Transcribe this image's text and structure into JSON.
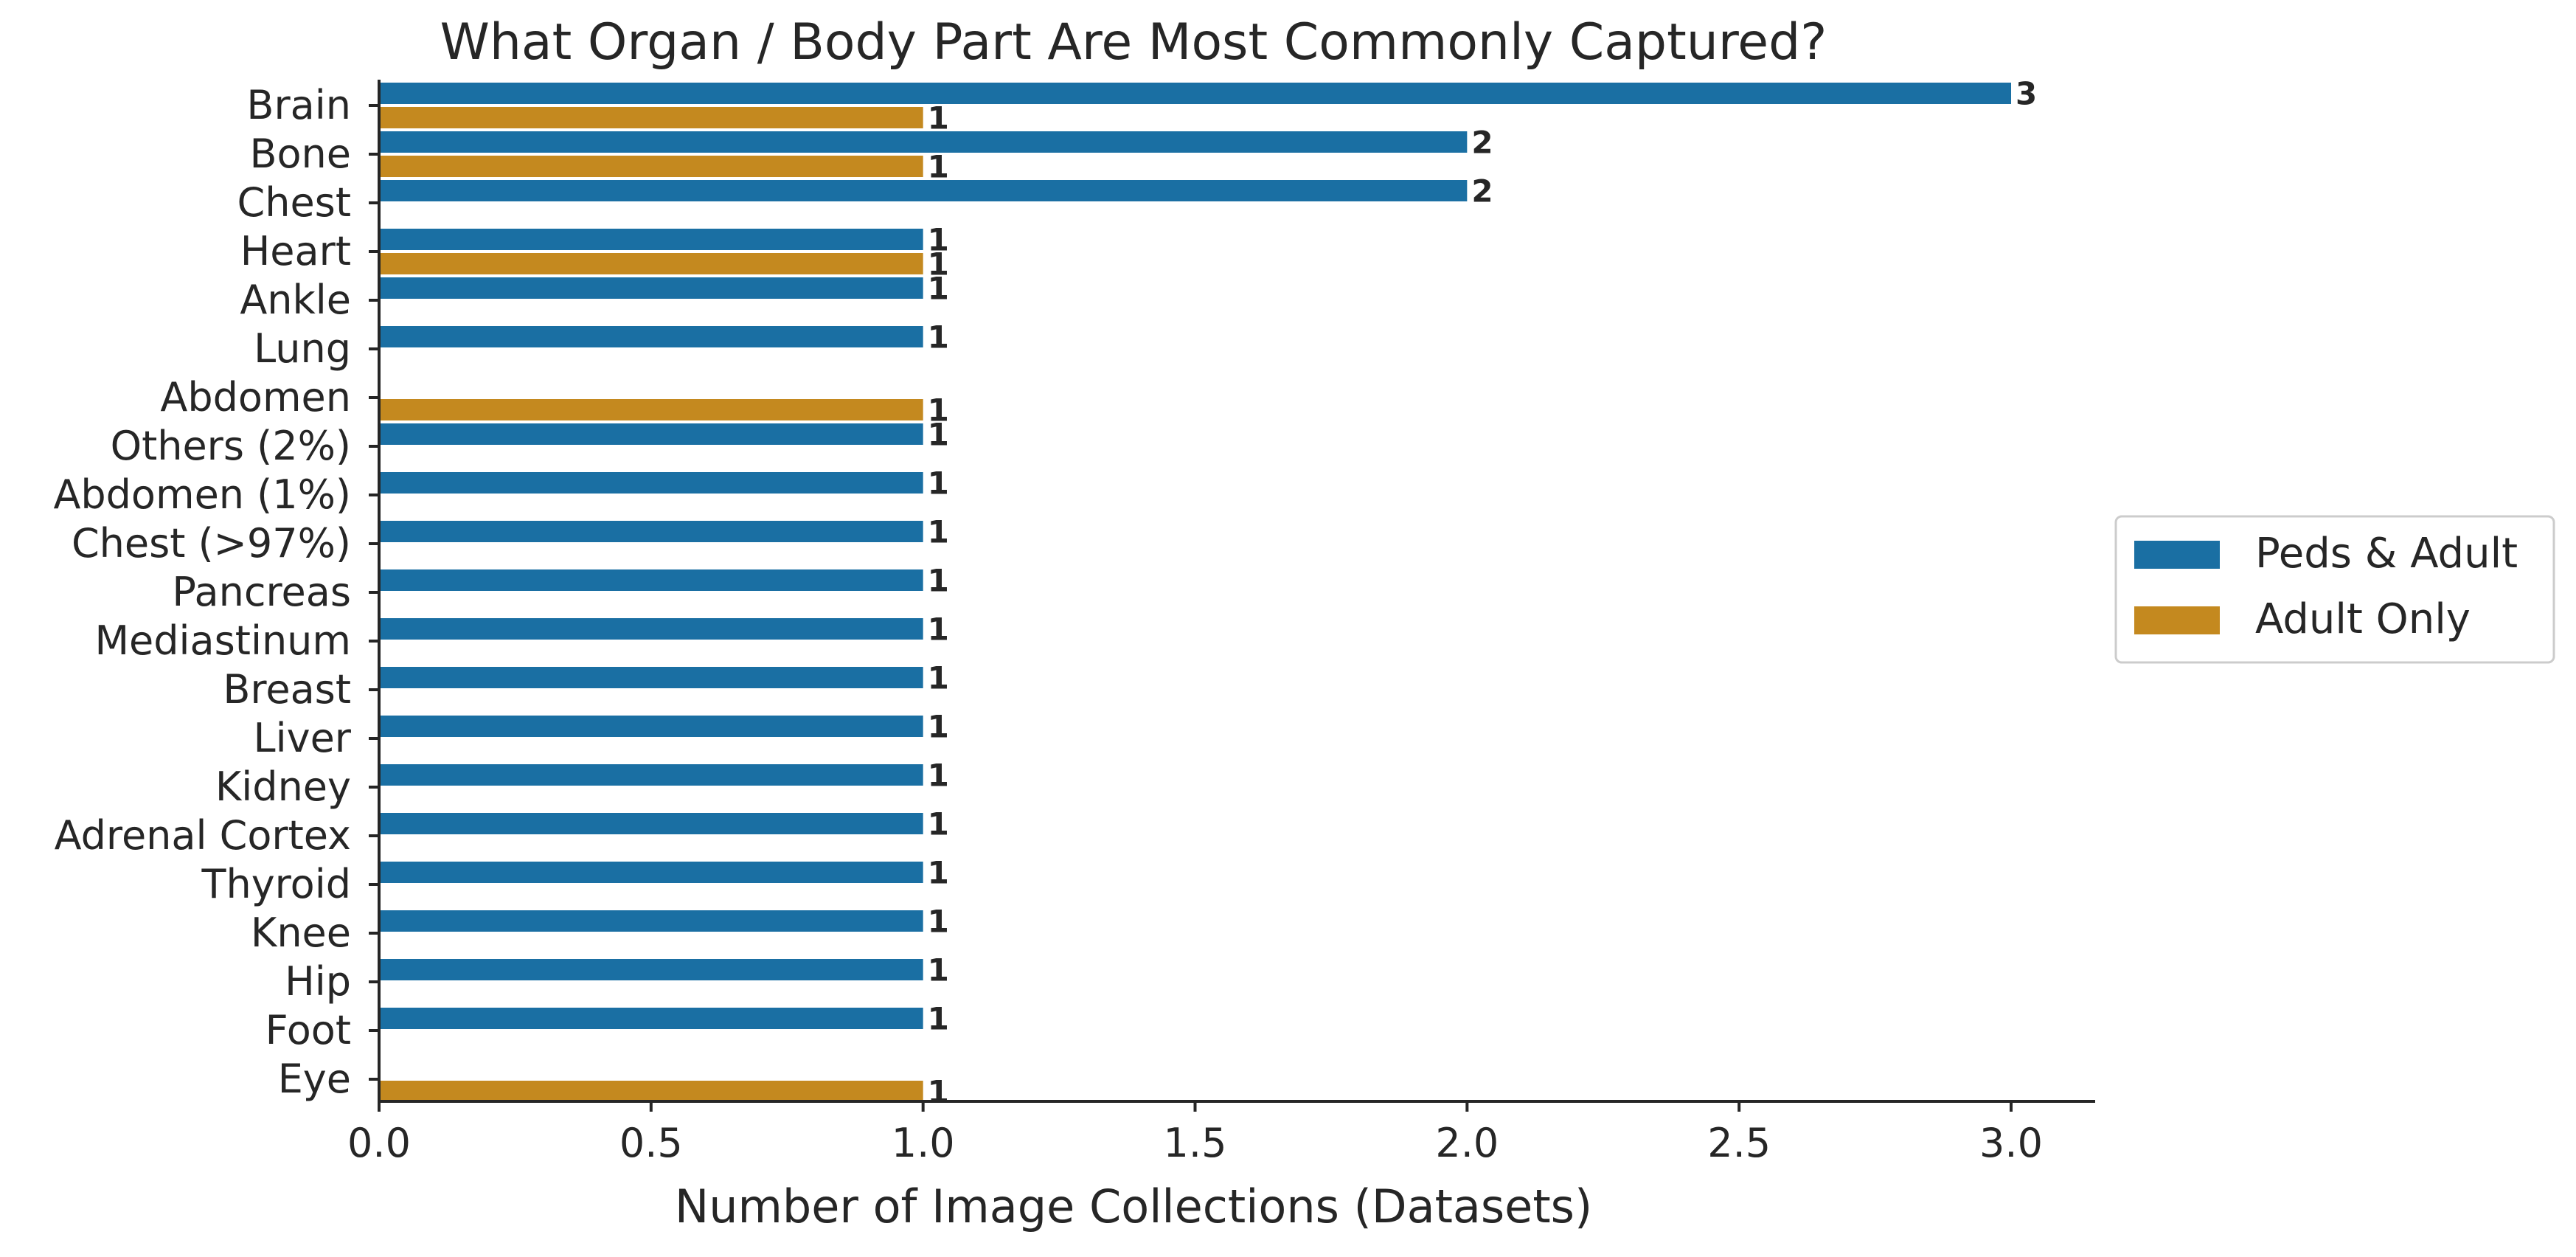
{
  "chart_data": {
    "type": "bar",
    "orientation": "horizontal",
    "title": "What Organ / Body Part Are Most Commonly Captured?",
    "xlabel": "Number of Image Collections (Datasets)",
    "ylabel": "",
    "xlim": [
      0,
      3.15
    ],
    "xticks": [
      "0.0",
      "0.5",
      "1.0",
      "1.5",
      "2.0",
      "2.5",
      "3.0"
    ],
    "grid": false,
    "legend_position": "right-center",
    "categories": [
      "Brain",
      "Bone",
      "Chest",
      "Heart",
      "Ankle",
      "Lung",
      "Abdomen",
      "Others (2%)",
      "Abdomen (1%)",
      "Chest (>97%)",
      "Pancreas",
      "Mediastinum",
      "Breast",
      "Liver",
      "Kidney",
      "Adrenal Cortex",
      "Thyroid",
      "Knee",
      "Hip",
      "Foot",
      "Eye"
    ],
    "series": [
      {
        "name": "Peds & Adult",
        "color": "#1a6fa3",
        "values": [
          3,
          2,
          2,
          1,
          1,
          1,
          null,
          1,
          1,
          1,
          1,
          1,
          1,
          1,
          1,
          1,
          1,
          1,
          1,
          1,
          null
        ]
      },
      {
        "name": "Adult Only",
        "color": "#c4891f",
        "values": [
          1,
          1,
          null,
          1,
          null,
          null,
          1,
          null,
          null,
          null,
          null,
          null,
          null,
          null,
          null,
          null,
          null,
          null,
          null,
          null,
          1
        ]
      }
    ]
  }
}
